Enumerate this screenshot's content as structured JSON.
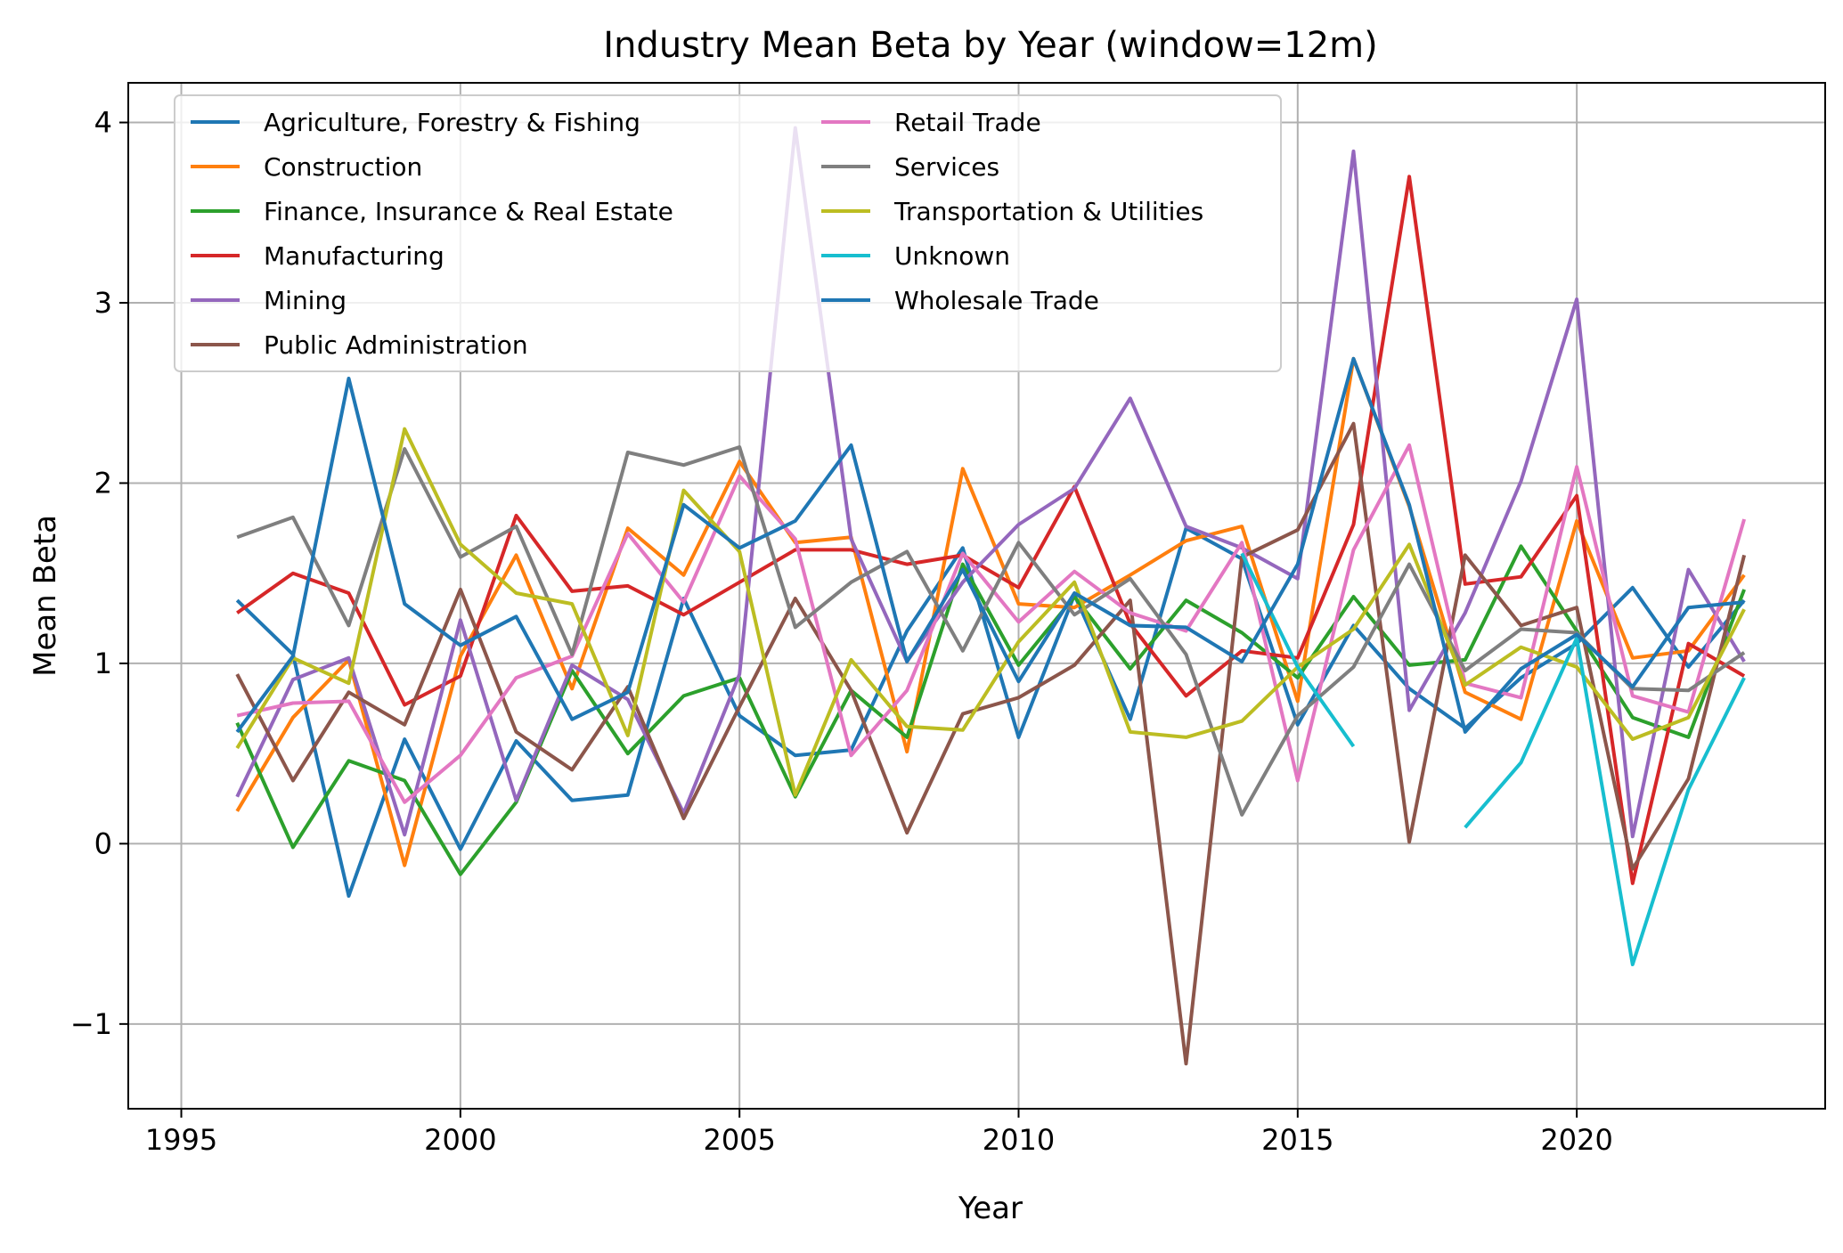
{
  "chart_data": {
    "type": "line",
    "title": "Industry Mean Beta by Year (window=12m)",
    "xlabel": "Year",
    "ylabel": "Mean Beta",
    "xlim": [
      1994.05,
      2024.45
    ],
    "ylim": [
      -1.47,
      4.22
    ],
    "xticks": [
      1995,
      2000,
      2005,
      2010,
      2015,
      2020
    ],
    "yticks": [
      -1,
      0,
      1,
      2,
      3,
      4
    ],
    "ytick_labels": [
      "−1",
      "0",
      "1",
      "2",
      "3",
      "4"
    ],
    "grid": true,
    "legend_position": "upper-left",
    "legend_columns": 2,
    "series": [
      {
        "name": "Agriculture, Forestry & Fishing",
        "color": "#1f77b4",
        "x": [
          1996,
          1997,
          1998,
          1999,
          2000,
          2001,
          2002,
          2003,
          2004,
          2005,
          2006,
          2007,
          2008,
          2009,
          2010,
          2011,
          2012,
          2013,
          2014,
          2015,
          2016,
          2017,
          2018,
          2019,
          2020,
          2021,
          2022,
          2023
        ],
        "y": [
          1.35,
          1.05,
          -0.29,
          0.58,
          -0.03,
          0.57,
          0.24,
          0.27,
          1.36,
          0.71,
          0.49,
          0.52,
          1.18,
          1.64,
          0.59,
          1.38,
          0.69,
          1.75,
          1.58,
          0.66,
          1.21,
          0.86,
          0.64,
          0.92,
          1.11,
          1.42,
          0.98,
          1.35
        ]
      },
      {
        "name": "Construction",
        "color": "#ff7f0e",
        "x": [
          1996,
          1997,
          1998,
          1999,
          2000,
          2001,
          2002,
          2003,
          2004,
          2005,
          2006,
          2007,
          2008,
          2009,
          2010,
          2011,
          2012,
          2013,
          2014,
          2015,
          2016,
          2017,
          2018,
          2019,
          2020,
          2021,
          2022,
          2023
        ],
        "y": [
          0.18,
          0.7,
          1.02,
          -0.12,
          1.04,
          1.6,
          0.86,
          1.75,
          1.49,
          2.12,
          1.67,
          1.7,
          0.51,
          2.08,
          1.33,
          1.31,
          1.49,
          1.68,
          1.76,
          0.79,
          2.69,
          1.87,
          0.84,
          0.69,
          1.79,
          1.03,
          1.07,
          1.49
        ]
      },
      {
        "name": "Finance, Insurance & Real Estate",
        "color": "#2ca02c",
        "x": [
          1996,
          1997,
          1998,
          1999,
          2000,
          2001,
          2002,
          2003,
          2004,
          2005,
          2006,
          2007,
          2008,
          2009,
          2010,
          2011,
          2012,
          2013,
          2014,
          2015,
          2016,
          2017,
          2018,
          2019,
          2020,
          2021,
          2022,
          2023
        ],
        "y": [
          0.67,
          -0.02,
          0.46,
          0.35,
          -0.17,
          0.23,
          0.96,
          0.5,
          0.82,
          0.92,
          0.26,
          0.85,
          0.59,
          1.55,
          0.99,
          1.37,
          0.97,
          1.35,
          1.17,
          0.92,
          1.37,
          0.99,
          1.02,
          1.65,
          1.18,
          0.7,
          0.59,
          1.41
        ]
      },
      {
        "name": "Manufacturing",
        "color": "#d62728",
        "x": [
          1996,
          1997,
          1998,
          1999,
          2000,
          2001,
          2002,
          2003,
          2004,
          2005,
          2006,
          2007,
          2008,
          2009,
          2010,
          2011,
          2012,
          2013,
          2014,
          2015,
          2016,
          2017,
          2018,
          2019,
          2020,
          2021,
          2022,
          2023
        ],
        "y": [
          1.28,
          1.5,
          1.39,
          0.77,
          0.93,
          1.82,
          1.4,
          1.43,
          1.27,
          1.45,
          1.63,
          1.63,
          1.55,
          1.6,
          1.42,
          1.98,
          1.22,
          0.82,
          1.07,
          1.03,
          1.77,
          3.7,
          1.44,
          1.48,
          1.93,
          -0.22,
          1.11,
          0.93
        ]
      },
      {
        "name": "Mining",
        "color": "#9467bd",
        "x": [
          1996,
          1997,
          1998,
          1999,
          2000,
          2001,
          2002,
          2003,
          2004,
          2005,
          2006,
          2007,
          2008,
          2009,
          2010,
          2011,
          2012,
          2013,
          2014,
          2015,
          2016,
          2017,
          2018,
          2019,
          2020,
          2021,
          2022,
          2023
        ],
        "y": [
          0.26,
          0.91,
          1.03,
          0.05,
          1.24,
          0.24,
          0.99,
          0.8,
          0.17,
          0.94,
          3.97,
          1.69,
          1.01,
          1.45,
          1.77,
          1.97,
          2.47,
          1.76,
          1.64,
          1.47,
          3.84,
          0.74,
          1.28,
          2.01,
          3.02,
          0.04,
          1.52,
          1.01
        ]
      },
      {
        "name": "Public Administration",
        "color": "#8c564b",
        "x": [
          1996,
          1997,
          1998,
          1999,
          2000,
          2001,
          2002,
          2003,
          2004,
          2005,
          2006,
          2007,
          2008,
          2009,
          2010,
          2011,
          2012,
          2013,
          2014,
          2015,
          2016,
          2017,
          2018,
          2019,
          2020,
          2021,
          2022,
          2023
        ],
        "y": [
          0.94,
          0.35,
          0.84,
          0.66,
          1.41,
          0.62,
          0.41,
          0.87,
          0.14,
          0.76,
          1.36,
          0.85,
          0.06,
          0.72,
          0.81,
          0.99,
          1.35,
          -1.22,
          1.59,
          1.74,
          2.33,
          0.01,
          1.6,
          1.21,
          1.31,
          -0.14,
          0.36,
          1.6
        ]
      },
      {
        "name": "Retail Trade",
        "color": "#e377c2",
        "x": [
          1996,
          1997,
          1998,
          1999,
          2000,
          2001,
          2002,
          2003,
          2004,
          2005,
          2006,
          2007,
          2008,
          2009,
          2010,
          2011,
          2012,
          2013,
          2014,
          2015,
          2016,
          2017,
          2018,
          2019,
          2020,
          2021,
          2022,
          2023
        ],
        "y": [
          0.71,
          0.78,
          0.79,
          0.23,
          0.49,
          0.92,
          1.04,
          1.72,
          1.34,
          2.04,
          1.69,
          0.49,
          0.85,
          1.61,
          1.23,
          1.51,
          1.28,
          1.18,
          1.67,
          0.35,
          1.63,
          2.21,
          0.89,
          0.81,
          2.09,
          0.82,
          0.73,
          1.8
        ]
      },
      {
        "name": "Services",
        "color": "#7f7f7f",
        "x": [
          1996,
          1997,
          1998,
          1999,
          2000,
          2001,
          2002,
          2003,
          2004,
          2005,
          2006,
          2007,
          2008,
          2009,
          2010,
          2011,
          2012,
          2013,
          2014,
          2015,
          2016,
          2017,
          2018,
          2019,
          2020,
          2021,
          2022,
          2023
        ],
        "y": [
          1.7,
          1.81,
          1.21,
          2.19,
          1.59,
          1.76,
          1.05,
          2.17,
          2.1,
          2.2,
          1.2,
          1.45,
          1.62,
          1.07,
          1.67,
          1.27,
          1.47,
          1.05,
          0.16,
          0.71,
          0.98,
          1.55,
          0.96,
          1.19,
          1.17,
          0.86,
          0.85,
          1.06
        ]
      },
      {
        "name": "Transportation & Utilities",
        "color": "#bcbd22",
        "x": [
          1996,
          1997,
          1998,
          1999,
          2000,
          2001,
          2002,
          2003,
          2004,
          2005,
          2006,
          2007,
          2008,
          2009,
          2010,
          2011,
          2012,
          2013,
          2014,
          2015,
          2016,
          2017,
          2018,
          2019,
          2020,
          2021,
          2022,
          2023
        ],
        "y": [
          0.53,
          1.03,
          0.89,
          2.3,
          1.66,
          1.39,
          1.33,
          0.6,
          1.96,
          1.62,
          0.27,
          1.02,
          0.65,
          0.63,
          1.12,
          1.45,
          0.62,
          0.59,
          0.68,
          0.98,
          1.19,
          1.66,
          0.88,
          1.09,
          0.98,
          0.58,
          0.7,
          1.3
        ]
      },
      {
        "name": "Unknown",
        "color": "#17becf",
        "x": [
          2014,
          2015,
          2016,
          2018,
          2019,
          2020,
          2021,
          2022,
          2023
        ],
        "y": [
          1.61,
          0.98,
          0.54,
          0.09,
          0.45,
          1.14,
          -0.67,
          0.3,
          0.92
        ]
      },
      {
        "name": "Wholesale Trade",
        "color": "#1f77b4",
        "x": [
          1996,
          1997,
          1998,
          1999,
          2000,
          2001,
          2002,
          2003,
          2004,
          2005,
          2006,
          2007,
          2008,
          2009,
          2010,
          2011,
          2012,
          2013,
          2014,
          2015,
          2016,
          2017,
          2018,
          2019,
          2020,
          2021,
          2022,
          2023
        ],
        "y": [
          0.62,
          1.04,
          2.58,
          1.33,
          1.1,
          1.26,
          0.69,
          0.84,
          1.88,
          1.64,
          1.79,
          2.21,
          1.01,
          1.52,
          0.9,
          1.39,
          1.21,
          1.2,
          1.01,
          1.55,
          2.69,
          1.88,
          0.62,
          0.97,
          1.16,
          0.87,
          1.31,
          1.34
        ]
      }
    ]
  }
}
